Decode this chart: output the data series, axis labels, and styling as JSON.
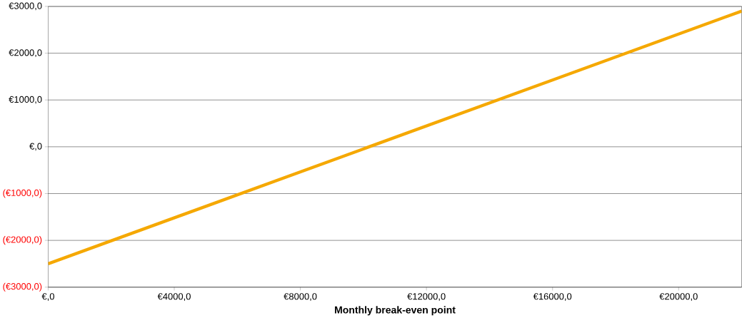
{
  "chart_data": {
    "type": "line",
    "xlabel": "Monthly break-even point",
    "x": [
      0,
      22000
    ],
    "series": [
      {
        "color": "#f5a800",
        "values": [
          -2500,
          2900
        ]
      }
    ],
    "xlim": [
      0,
      22000
    ],
    "ylim": [
      -3000,
      3000
    ],
    "xticks": [
      {
        "value": 0,
        "label": "€,0"
      },
      {
        "value": 4000,
        "label": "€4000,0"
      },
      {
        "value": 8000,
        "label": "€8000,0"
      },
      {
        "value": 12000,
        "label": "€12000,0"
      },
      {
        "value": 16000,
        "label": "€16000,0"
      },
      {
        "value": 20000,
        "label": "€20000,0"
      }
    ],
    "yticks": [
      {
        "value": -3000,
        "label": "(€3000,0)"
      },
      {
        "value": -2000,
        "label": "(€2000,0)"
      },
      {
        "value": -1000,
        "label": "(€1000,0)"
      },
      {
        "value": 0,
        "label": "€,0"
      },
      {
        "value": 1000,
        "label": "€1000,0"
      },
      {
        "value": 2000,
        "label": "€2000,0"
      },
      {
        "value": 3000,
        "label": "€3000,0"
      }
    ],
    "grid": "y",
    "marker": "none",
    "line_style": "solid"
  }
}
